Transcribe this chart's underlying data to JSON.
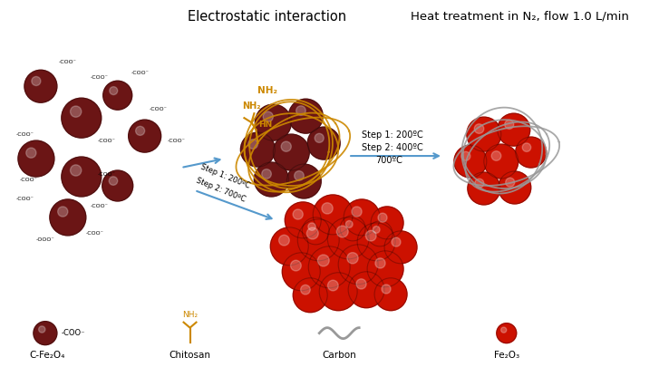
{
  "title_left": "Electrostatic interaction",
  "title_right": "Heat treatment in N₂, flow 1.0 L/min",
  "dark_red": "#6B1515",
  "bright_red": "#CC1100",
  "orange": "#CC8800",
  "blue_arrow": "#5599CC",
  "gray": "#999999",
  "step1_text": "Step 1: 200ºC",
  "step2_text_top": "Step 2: 400ºC",
  "step2_text_bot": "700ºC",
  "diag_step1": "Step 1: 200ºC",
  "diag_step2": "Step 2: 700ºC",
  "legend_labels": [
    "C-Fe₂O₄",
    "Chitosan",
    "Carbon",
    "Fe₂O₃"
  ],
  "bg_color": "#FFFFFF"
}
